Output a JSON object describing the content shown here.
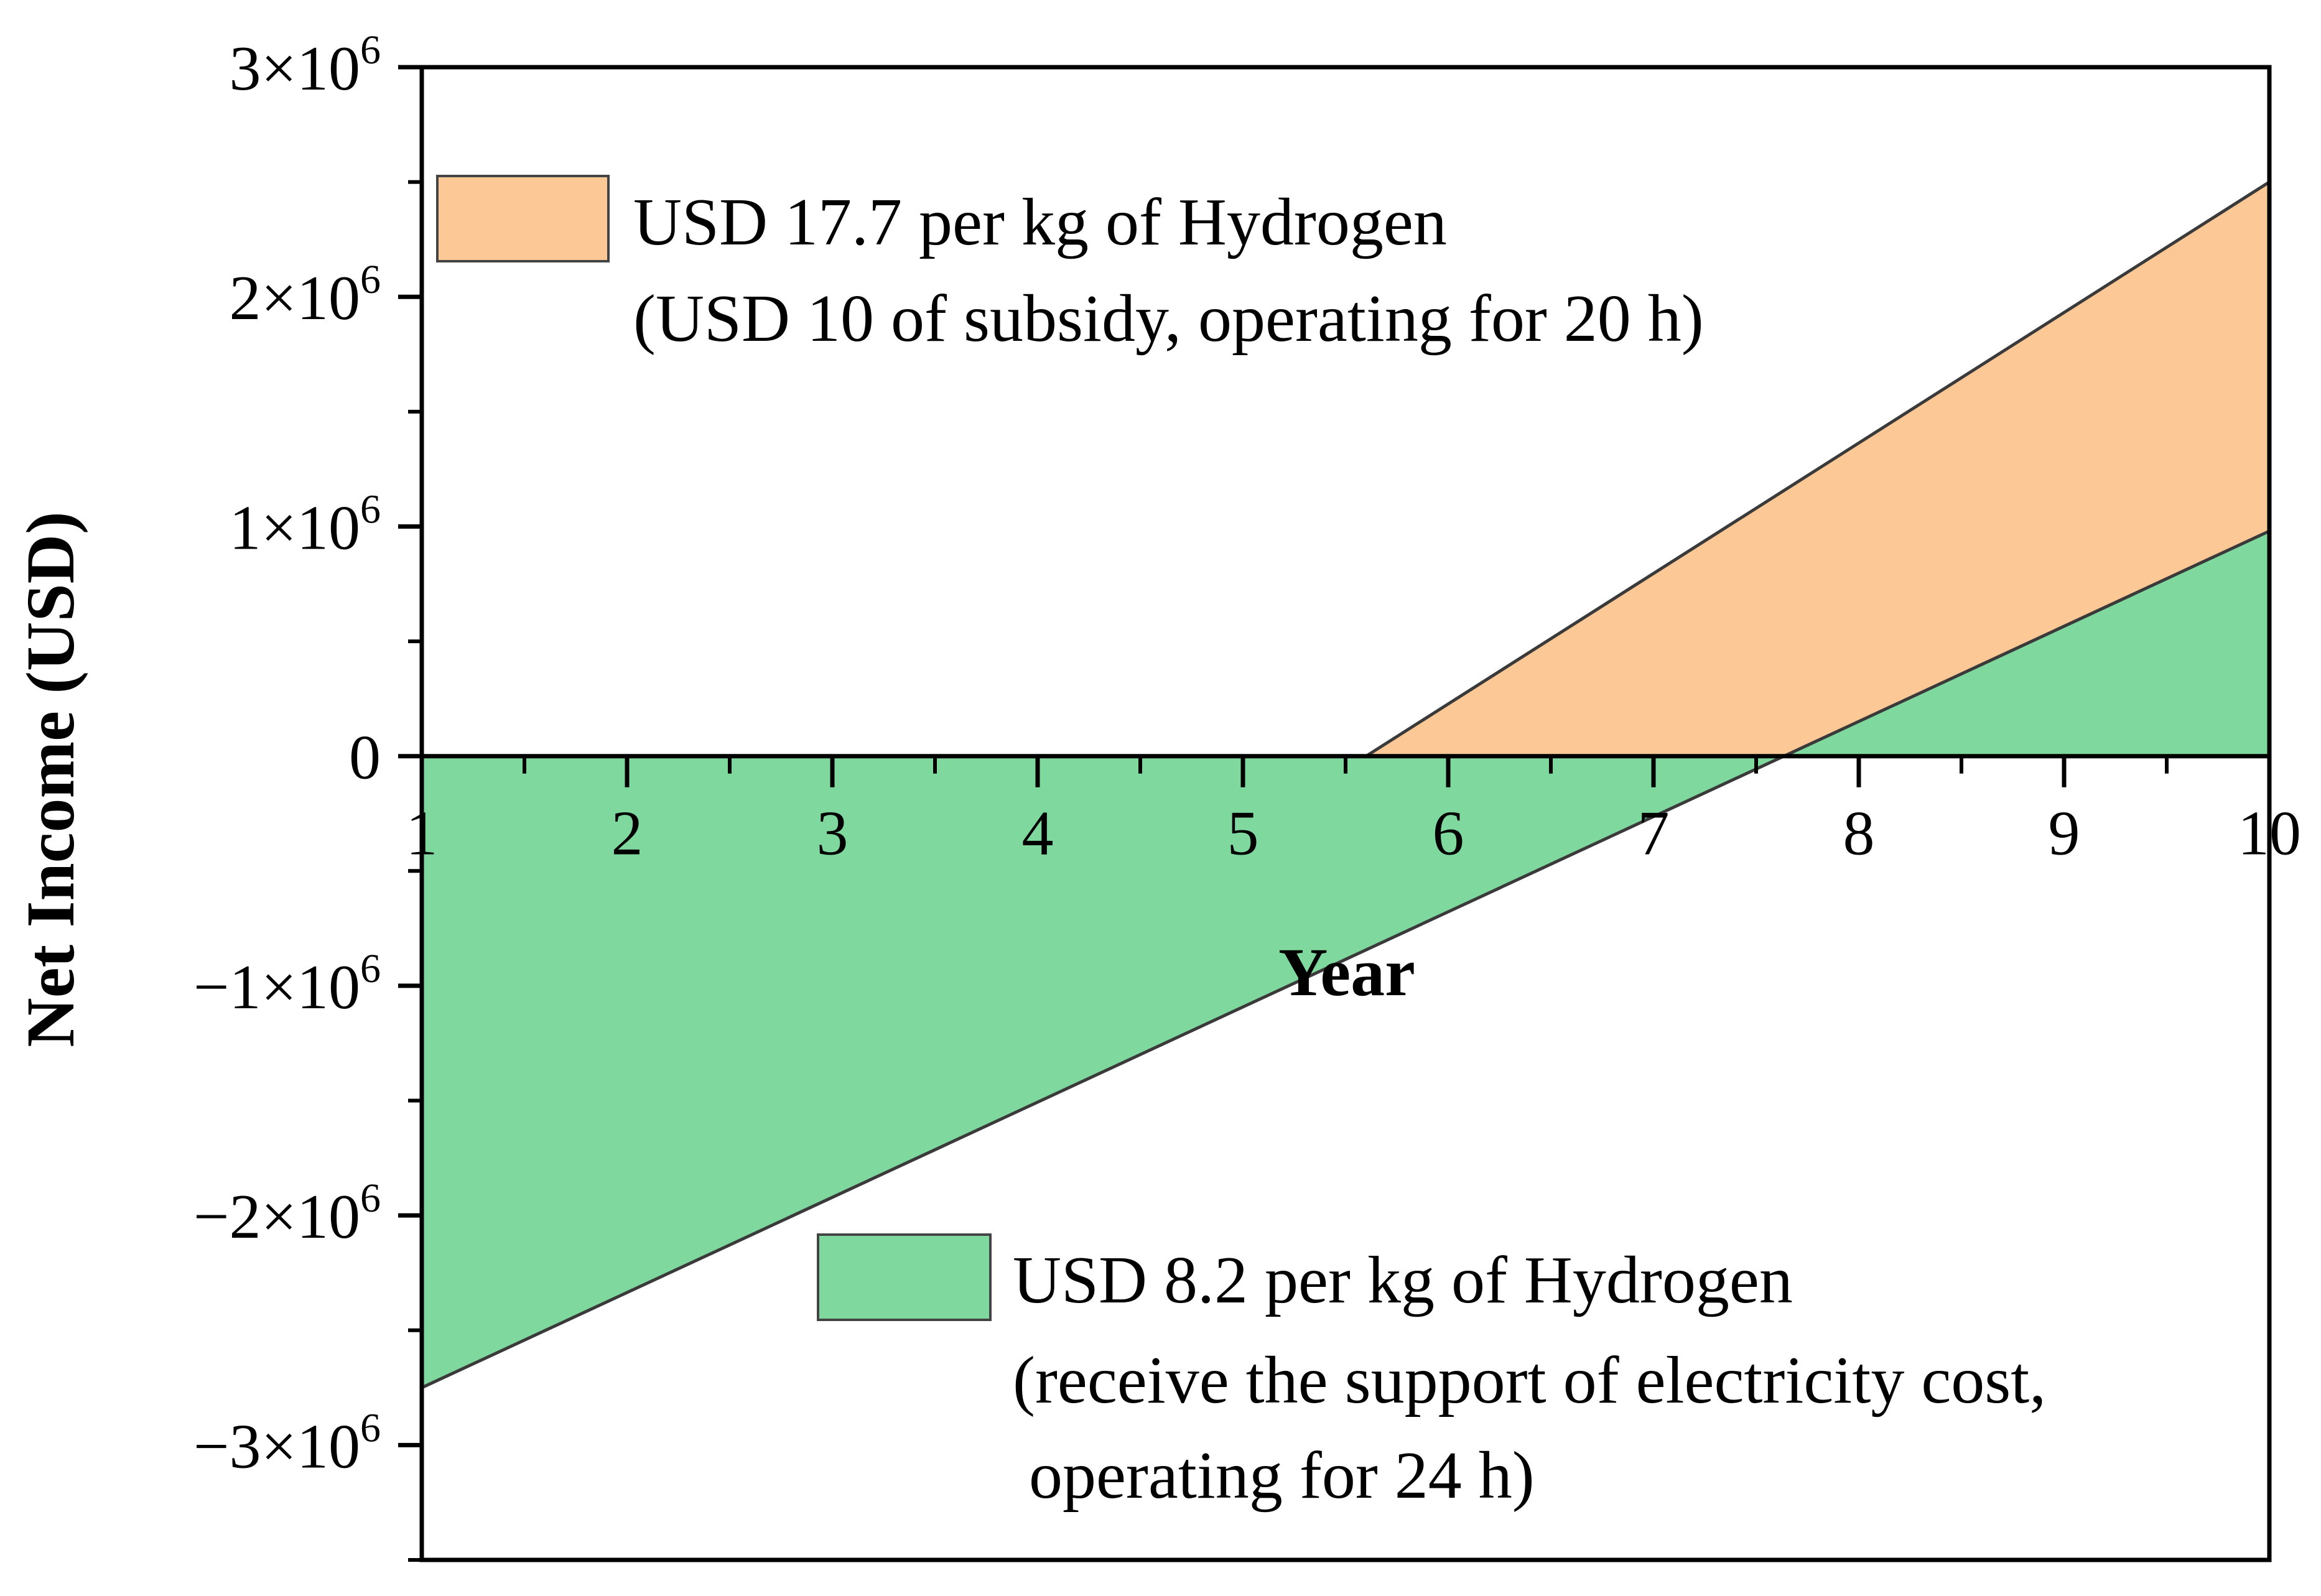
{
  "chart_data": {
    "type": "area",
    "xlabel": "Year",
    "ylabel": "Net Income (USD)",
    "xlim": [
      1,
      10
    ],
    "ylim": [
      -3500000,
      3000000
    ],
    "x_ticks": [
      1,
      2,
      3,
      4,
      5,
      6,
      7,
      8,
      9,
      10
    ],
    "x_tick_labels": [
      "1",
      "2",
      "3",
      "4",
      "5",
      "6",
      "7",
      "8",
      "9",
      "10"
    ],
    "y_ticks": [
      {
        "value": 3000000,
        "mantissa": "3×10",
        "exp": "6"
      },
      {
        "value": 2000000,
        "mantissa": "2×10",
        "exp": "6"
      },
      {
        "value": 1000000,
        "mantissa": "1×10",
        "exp": "6"
      },
      {
        "value": 0,
        "mantissa": "0",
        "exp": ""
      },
      {
        "value": -1000000,
        "mantissa": "−1×10",
        "exp": "6"
      },
      {
        "value": -2000000,
        "mantissa": "−2×10",
        "exp": "6"
      },
      {
        "value": -3000000,
        "mantissa": "−3×10",
        "exp": "6"
      }
    ],
    "grid": false,
    "series": [
      {
        "name": "USD 17.7 per kg of Hydrogen",
        "description": "(USD 10 of subsidy, operating for 20 h)",
        "color": "#fcc896",
        "x": [
          5.6,
          10
        ],
        "y": [
          0,
          2500000
        ]
      },
      {
        "name": "USD 8.2 per kg of Hydrogen",
        "description": "(receive the support of electricity cost,",
        "description2": "operating for 24 h)",
        "color": "#7fd89e",
        "x": [
          1,
          10
        ],
        "y": [
          -2750000,
          980000
        ]
      }
    ]
  }
}
